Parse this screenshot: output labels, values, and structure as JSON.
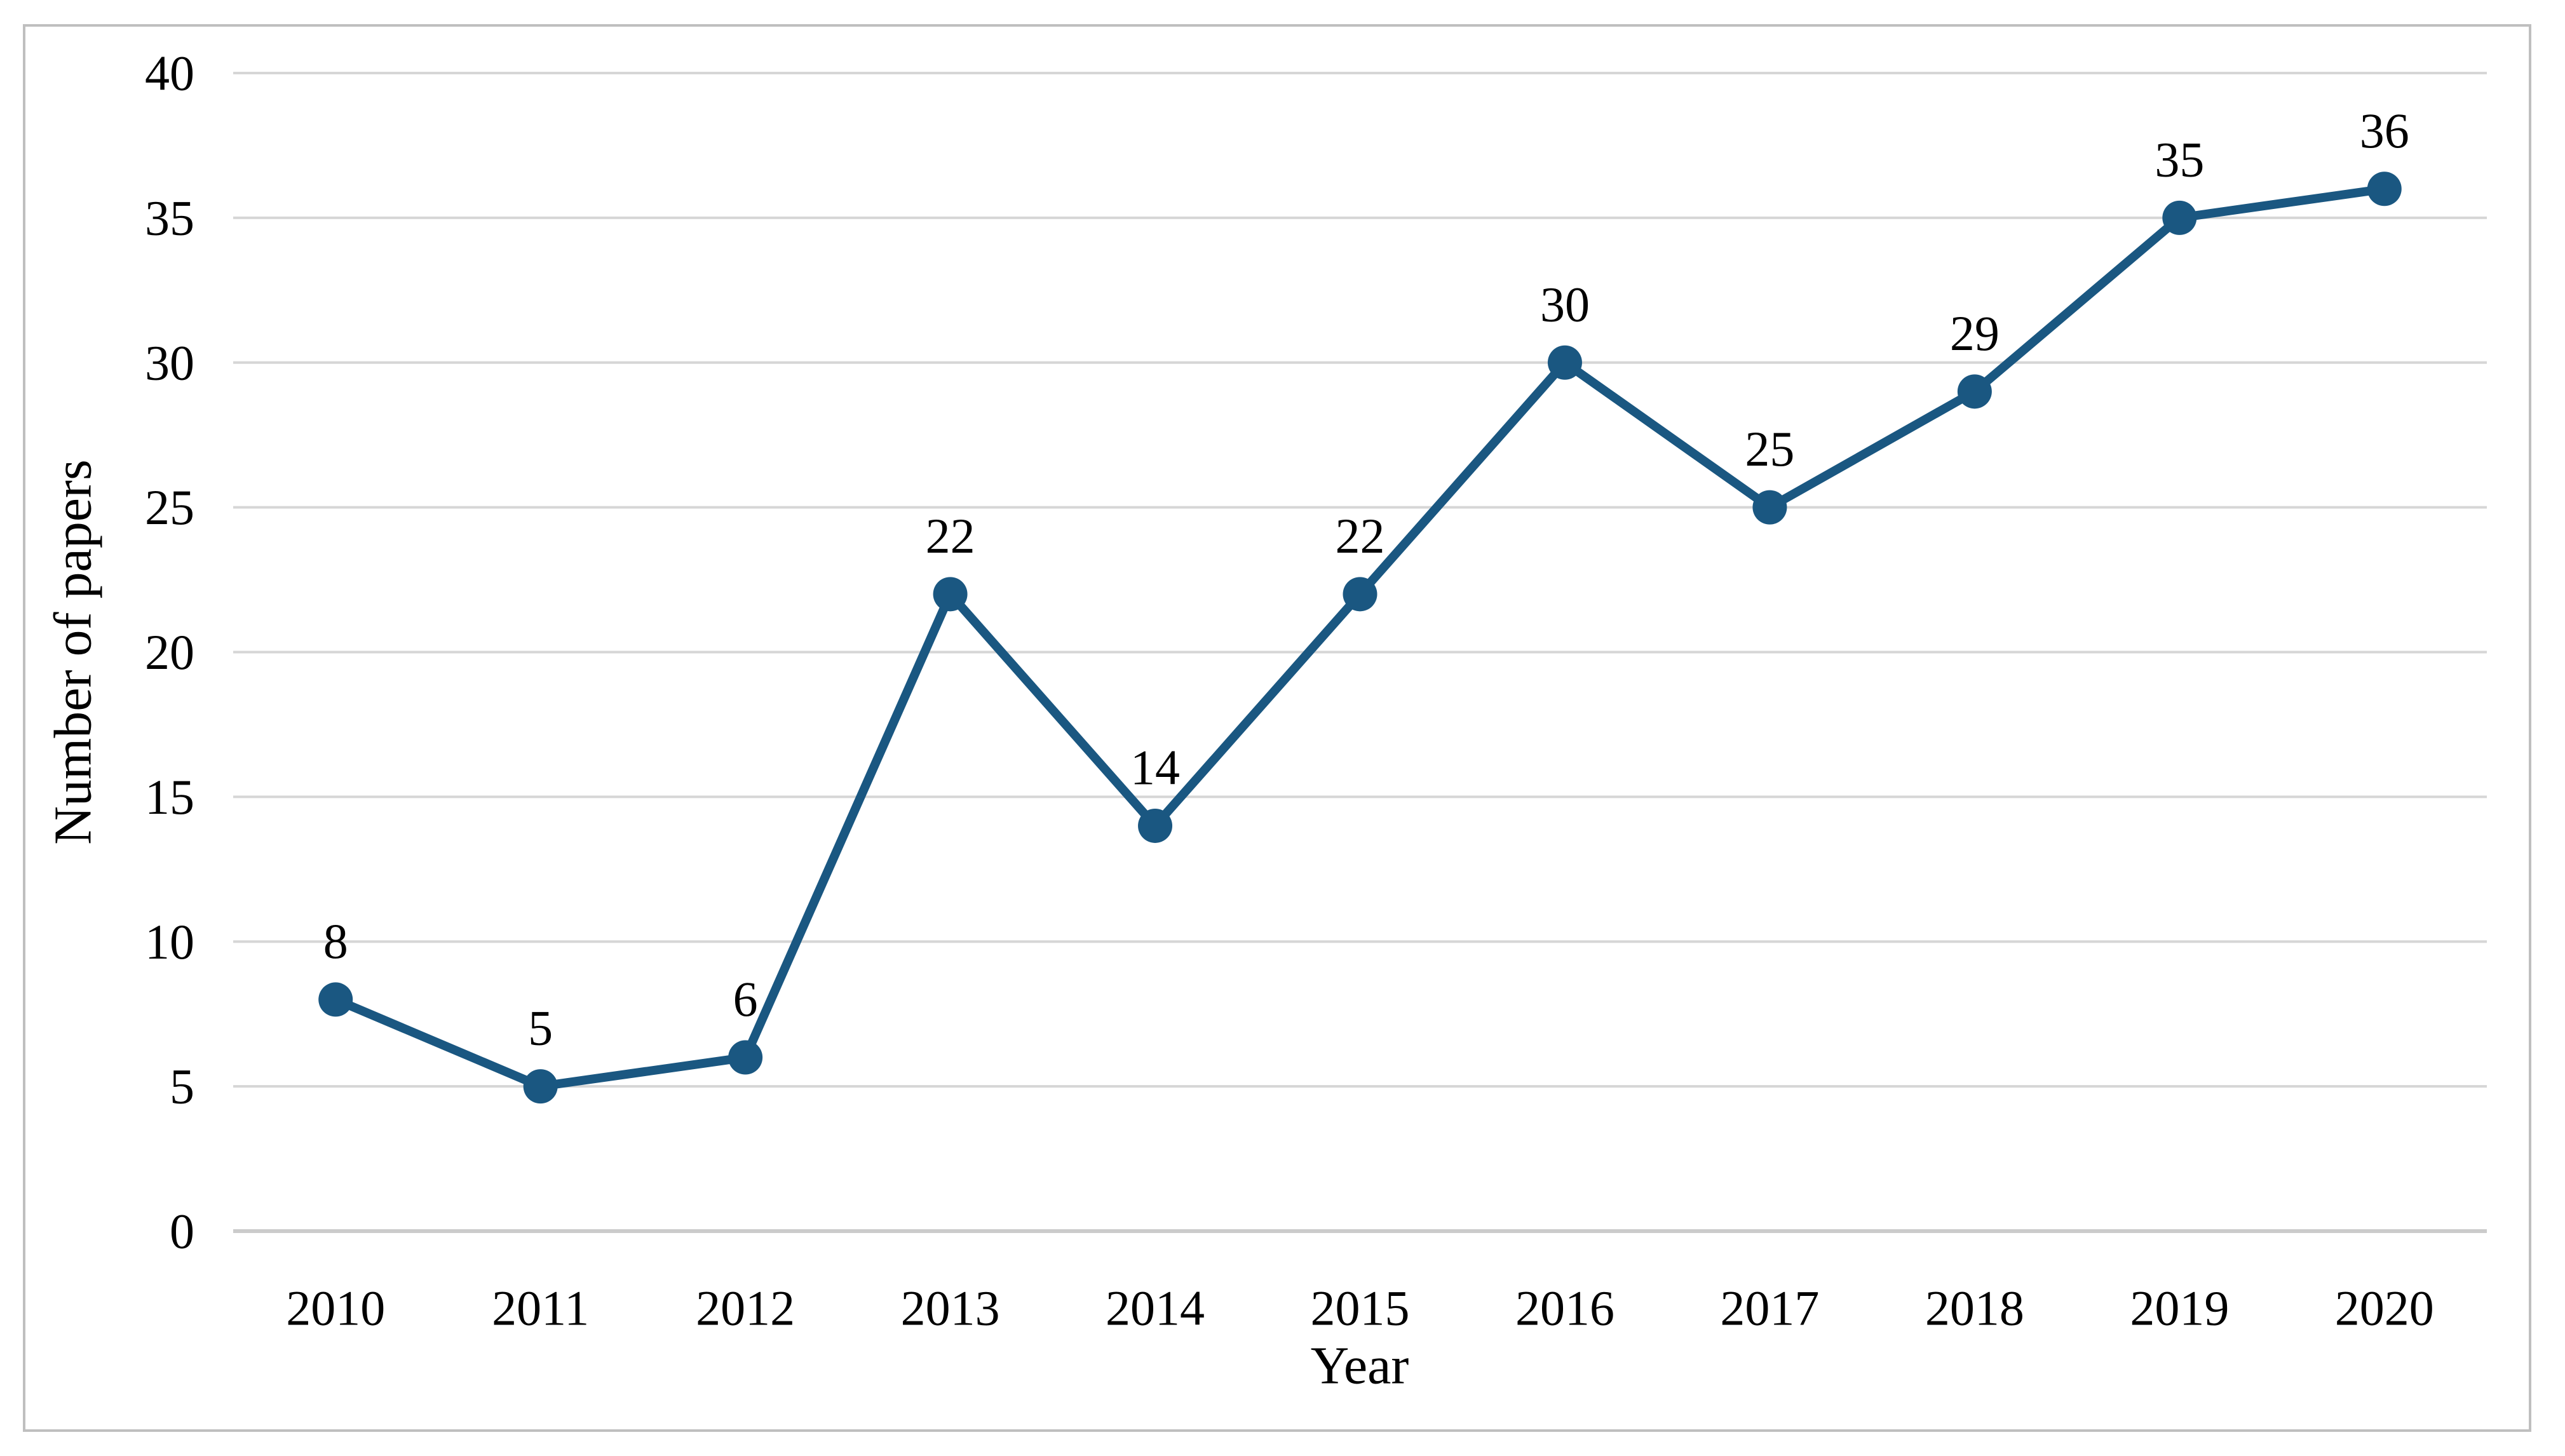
{
  "figure": {
    "background": "#FFFFFF",
    "border_color": "#BFBFBF"
  },
  "chart_data": {
    "type": "line",
    "categories": [
      "2010",
      "2011",
      "2012",
      "2013",
      "2014",
      "2015",
      "2016",
      "2017",
      "2018",
      "2019",
      "2020"
    ],
    "values": [
      8,
      5,
      6,
      22,
      14,
      22,
      30,
      25,
      29,
      35,
      36
    ],
    "data_labels": [
      "8",
      "5",
      "6",
      "22",
      "14",
      "22",
      "30",
      "25",
      "29",
      "35",
      "36"
    ],
    "title": "",
    "xlabel": "Year",
    "ylabel": "Number of papers",
    "ylim": [
      0,
      40
    ],
    "yticks": [
      0,
      5,
      10,
      15,
      20,
      25,
      30,
      35,
      40
    ],
    "grid": true,
    "legend": "none",
    "colors": {
      "line": "#1A5781",
      "marker": "#1A5781",
      "gridline": "#D6D6D6",
      "axis_line": "#CBCBCB",
      "text": "#000000"
    }
  }
}
